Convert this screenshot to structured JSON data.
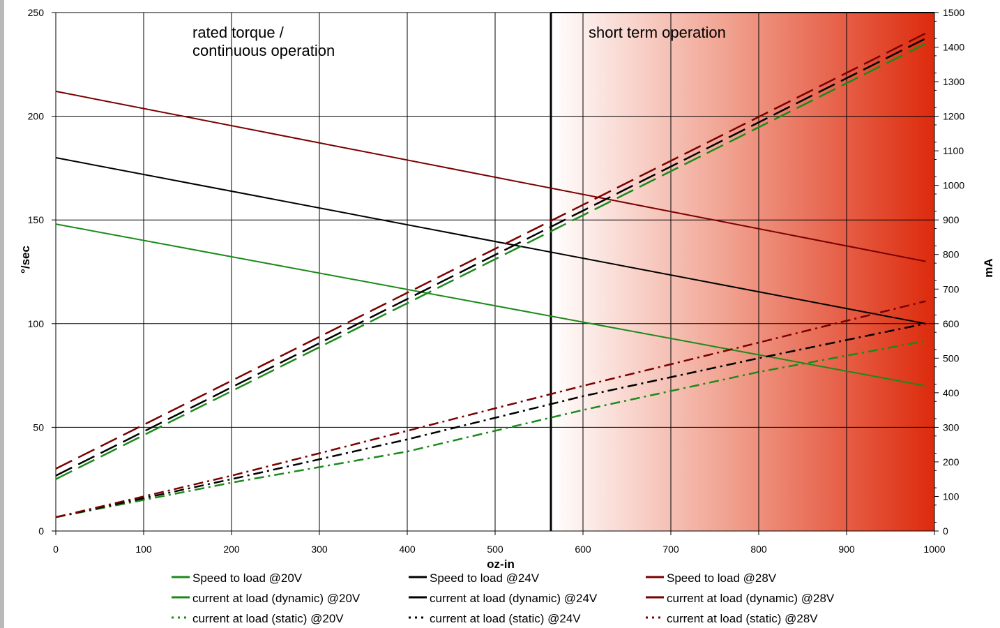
{
  "chart_data": {
    "type": "line",
    "xlabel": "oz-in",
    "ylabel_left": "°/sec",
    "ylabel_right": "mA",
    "xlim": [
      0,
      1000
    ],
    "ylim_left": [
      0,
      250
    ],
    "ylim_right": [
      0,
      1500
    ],
    "x_ticks": [
      "0",
      "100",
      "200",
      "300",
      "400",
      "500",
      "600",
      "700",
      "800",
      "900",
      "1000"
    ],
    "y_left_ticks": [
      "0",
      "50",
      "100",
      "150",
      "200",
      "250"
    ],
    "y_right_ticks": [
      "0",
      "100",
      "200",
      "300",
      "400",
      "500",
      "600",
      "700",
      "800",
      "900",
      "1000",
      "1100",
      "1200",
      "1300",
      "1400",
      "1500"
    ],
    "grid": true,
    "regions": [
      {
        "label_lines": [
          "rated torque /",
          "continuous operation"
        ],
        "x_from": 0,
        "x_to": 560
      },
      {
        "label_lines": [
          "short term operation"
        ],
        "x_from": 560,
        "x_to": 1000
      }
    ],
    "series": [
      {
        "name": "Speed  to  load  @20V",
        "axis": "left",
        "style": "solid",
        "color": "#1a8a1a",
        "x": [
          0,
          990
        ],
        "values": [
          148,
          70
        ]
      },
      {
        "name": "Speed  to  load  @24V",
        "axis": "left",
        "style": "solid",
        "color": "#000000",
        "x": [
          0,
          990
        ],
        "values": [
          180,
          100
        ]
      },
      {
        "name": "Speed  to  load  @28V",
        "axis": "left",
        "style": "solid",
        "color": "#7a0000",
        "x": [
          0,
          990
        ],
        "values": [
          212,
          130
        ]
      },
      {
        "name": "current at load (dynamic) @20V",
        "axis": "right",
        "style": "dashed",
        "color": "#1a8a1a",
        "x": [
          0,
          990
        ],
        "values": [
          150,
          1410
        ]
      },
      {
        "name": "current at load (dynamic) @24V",
        "axis": "right",
        "style": "dashed",
        "color": "#000000",
        "x": [
          0,
          990
        ],
        "values": [
          160,
          1425
        ]
      },
      {
        "name": "current at load (dynamic) @28V",
        "axis": "right",
        "style": "dashed",
        "color": "#7a0000",
        "x": [
          0,
          990
        ],
        "values": [
          180,
          1440
        ]
      },
      {
        "name": "current at load (static) @20V",
        "axis": "right",
        "style": "dashdot",
        "color": "#1a8a1a",
        "x": [
          0,
          200,
          400,
          600,
          800,
          990
        ],
        "values": [
          40,
          140,
          230,
          350,
          460,
          550
        ]
      },
      {
        "name": "current at load (static) @24V",
        "axis": "right",
        "style": "dashdot",
        "color": "#000000",
        "x": [
          0,
          200,
          400,
          600,
          800,
          990
        ],
        "values": [
          40,
          150,
          265,
          390,
          500,
          600
        ]
      },
      {
        "name": "current at load (static) @28V",
        "axis": "right",
        "style": "dashdot",
        "color": "#7a0000",
        "x": [
          0,
          200,
          400,
          600,
          800,
          990
        ],
        "values": [
          40,
          160,
          290,
          420,
          545,
          665
        ]
      }
    ]
  }
}
